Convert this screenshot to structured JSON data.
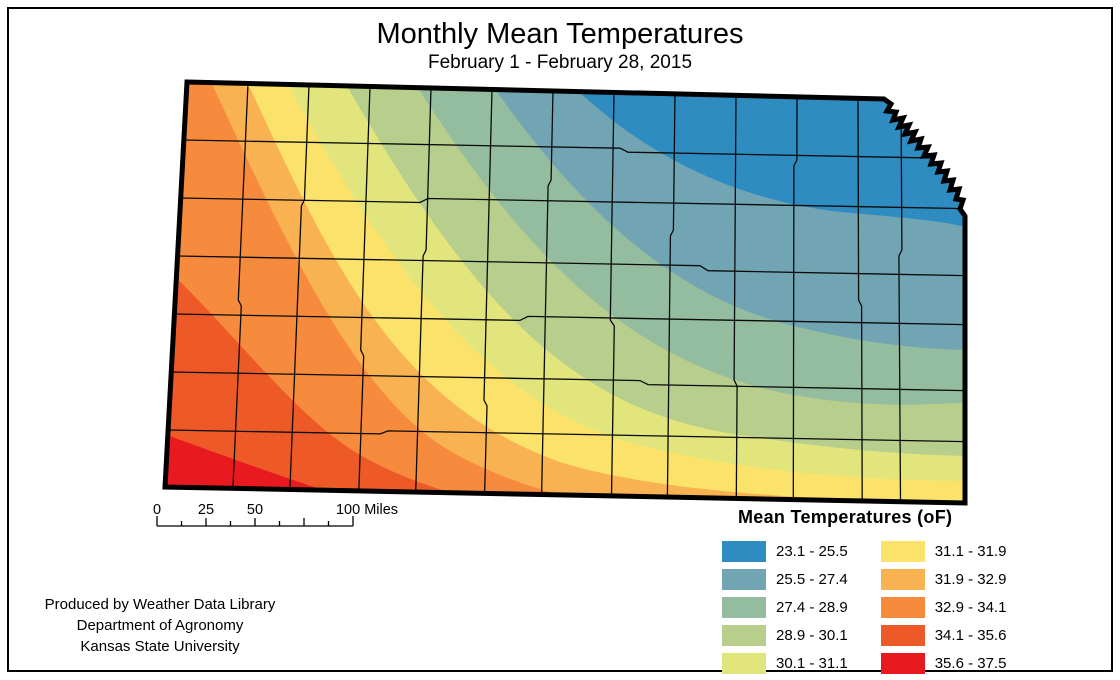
{
  "title": "Monthly Mean Temperatures",
  "subtitle": "February 1 - February 28, 2015",
  "legend": {
    "title": "Mean Temperatures (oF)",
    "items": [
      {
        "range": "23.1 - 25.5",
        "color": "#2E8CC1"
      },
      {
        "range": "25.5 - 27.4",
        "color": "#72A5B3"
      },
      {
        "range": "27.4 - 28.9",
        "color": "#93BD9E"
      },
      {
        "range": "28.9 - 30.1",
        "color": "#B8CE8D"
      },
      {
        "range": "30.1 - 31.1",
        "color": "#E1E57B"
      },
      {
        "range": "31.1 - 31.9",
        "color": "#FBE26A"
      },
      {
        "range": "31.9 - 32.9",
        "color": "#F9B251"
      },
      {
        "range": "32.9 - 34.1",
        "color": "#F68B3E"
      },
      {
        "range": "34.1 - 35.6",
        "color": "#ED5A28"
      },
      {
        "range": "35.6 - 37.5",
        "color": "#E8191F"
      }
    ]
  },
  "scalebar": {
    "tick_labels": [
      "0",
      "25",
      "50"
    ],
    "end_label": "100 Miles"
  },
  "attribution": [
    "Produced by Weather Data Library",
    "Department of Agronomy",
    "Kansas State University"
  ]
}
